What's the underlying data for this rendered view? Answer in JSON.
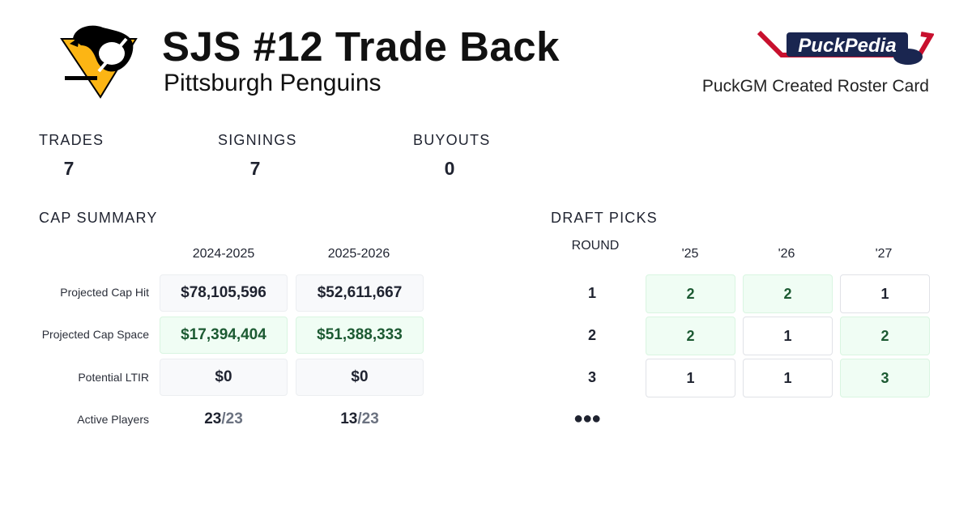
{
  "header": {
    "title": "SJS #12 Trade Back",
    "team": "Pittsburgh Penguins",
    "credit": "PuckGM Created Roster Card",
    "logo_text": "PuckPedia"
  },
  "stats": [
    {
      "label": "TRADES",
      "value": "7"
    },
    {
      "label": "SIGNINGS",
      "value": "7"
    },
    {
      "label": "BUYOUTS",
      "value": "0"
    }
  ],
  "cap_summary": {
    "heading": "CAP SUMMARY",
    "seasons": [
      "2024-2025",
      "2025-2026"
    ],
    "rows": [
      {
        "label": "Projected Cap Hit",
        "values": [
          "$78,105,596",
          "$52,611,667"
        ],
        "highlight": false
      },
      {
        "label": "Projected Cap Space",
        "values": [
          "$17,394,404",
          "$51,388,333"
        ],
        "highlight": true
      },
      {
        "label": "Potential LTIR",
        "values": [
          "$0",
          "$0"
        ],
        "highlight": false
      }
    ],
    "active_players": {
      "label": "Active Players",
      "values": [
        {
          "count": "23",
          "max": "/23"
        },
        {
          "count": "13",
          "max": "/23"
        }
      ]
    }
  },
  "draft_picks": {
    "heading": "DRAFT PICKS",
    "round_label": "ROUND",
    "years": [
      "'25",
      "'26",
      "'27"
    ],
    "rounds": [
      {
        "round": "1",
        "picks": [
          {
            "n": "2",
            "extra": true
          },
          {
            "n": "2",
            "extra": true
          },
          {
            "n": "1",
            "extra": false
          }
        ]
      },
      {
        "round": "2",
        "picks": [
          {
            "n": "2",
            "extra": true
          },
          {
            "n": "1",
            "extra": false
          },
          {
            "n": "2",
            "extra": true
          }
        ]
      },
      {
        "round": "3",
        "picks": [
          {
            "n": "1",
            "extra": false
          },
          {
            "n": "1",
            "extra": false
          },
          {
            "n": "3",
            "extra": true
          }
        ]
      }
    ],
    "more": "●●●"
  },
  "colors": {
    "green_bg": "#f0fdf4",
    "green_text": "#1c5a32",
    "penguins_gold": "#FCB514"
  }
}
